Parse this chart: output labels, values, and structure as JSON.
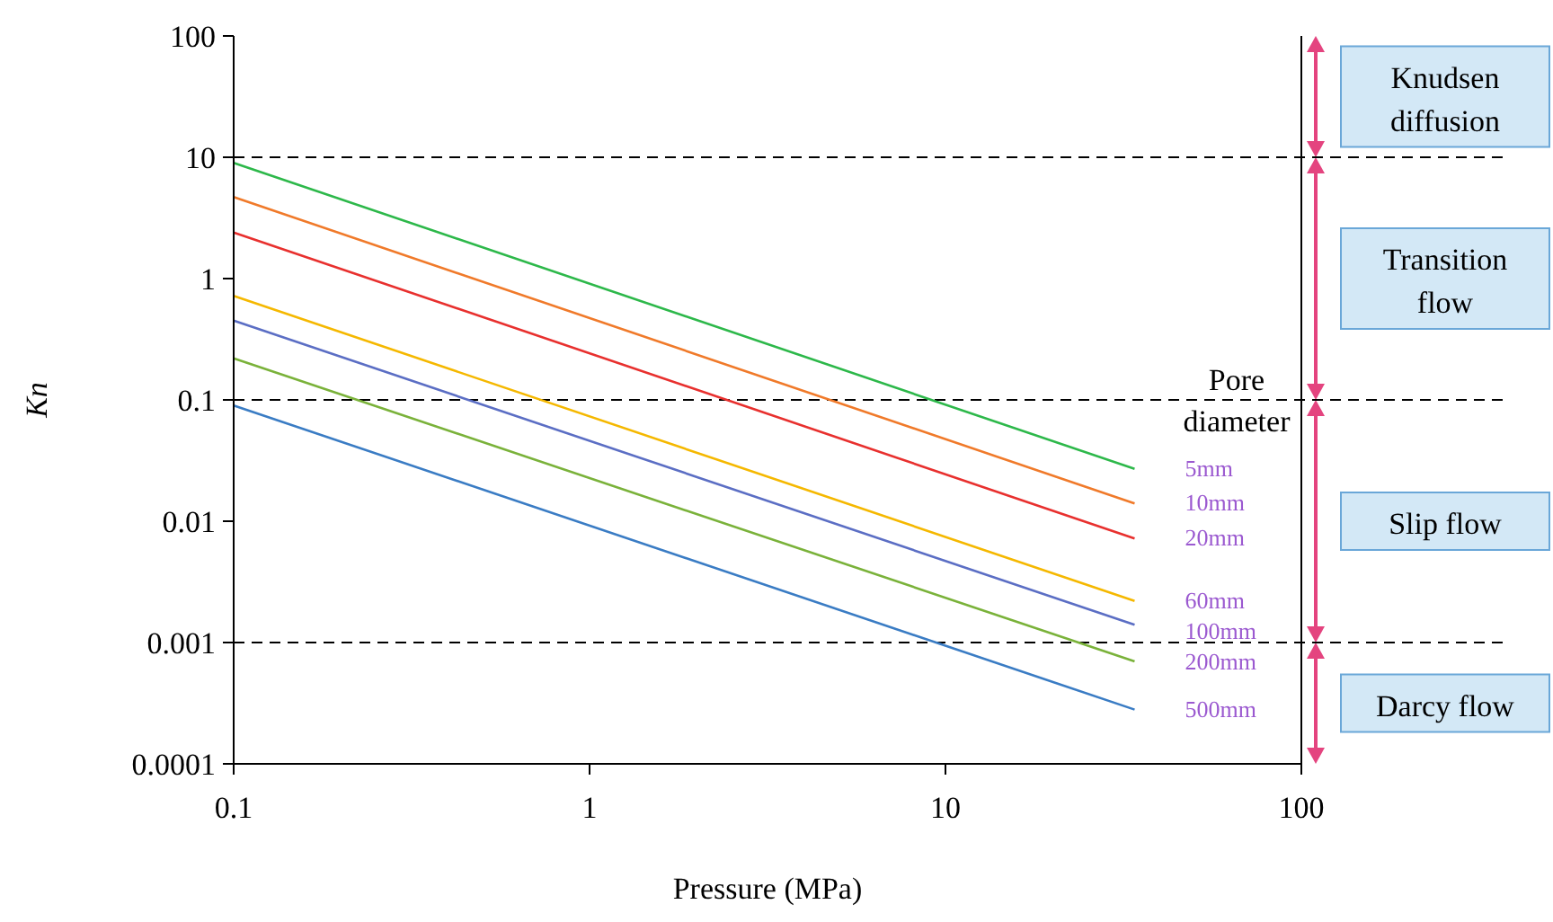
{
  "chart_data": {
    "type": "line",
    "xlabel": "Pressure (MPa)",
    "ylabel": "Kn",
    "legend_title": "Pore diameter",
    "log": "xy",
    "x": [
      0.1,
      34
    ],
    "xlim": [
      0.1,
      100
    ],
    "xticks": [
      0.1,
      1,
      10,
      100
    ],
    "ylim": [
      0.0001,
      100
    ],
    "yticks": [
      0.0001,
      0.001,
      0.01,
      0.1,
      1,
      10,
      100
    ],
    "series": [
      {
        "name": "5mm",
        "color": "#2db84a",
        "values": [
          9,
          0.027
        ]
      },
      {
        "name": "10mm",
        "color": "#f07a2a",
        "values": [
          4.7,
          0.014
        ]
      },
      {
        "name": "20mm",
        "color": "#e8302e",
        "values": [
          2.4,
          0.0072
        ]
      },
      {
        "name": "60mm",
        "color": "#f5b800",
        "values": [
          0.72,
          0.0022
        ]
      },
      {
        "name": "100mm",
        "color": "#5b6ec4",
        "values": [
          0.45,
          0.0014
        ]
      },
      {
        "name": "200mm",
        "color": "#7ab23a",
        "values": [
          0.22,
          0.0007
        ]
      },
      {
        "name": "500mm",
        "color": "#3a7cc4",
        "values": [
          0.09,
          0.00028
        ]
      }
    ],
    "ref_lines": [
      {
        "axis": "y",
        "value": 10,
        "line_style": "dashed",
        "color": "#000000"
      },
      {
        "axis": "y",
        "value": 0.1,
        "line_style": "dashed",
        "color": "#000000"
      },
      {
        "axis": "y",
        "value": 0.001,
        "line_style": "dashed",
        "color": "#000000"
      }
    ],
    "annotations": [
      "Knudsen diffusion",
      "Transition flow",
      "Slip flow",
      "Darcy flow"
    ]
  }
}
